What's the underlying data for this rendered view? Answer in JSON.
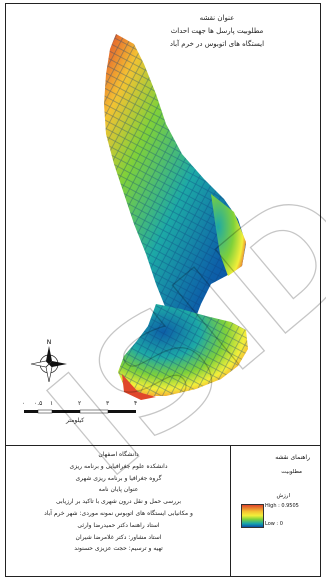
{
  "map_title": {
    "line1": "عنوان نقشه",
    "line2": "مطلوبیت پارسل ها جهت احداث",
    "line3": "ایستگاه های اتوبوس در خرم آباد"
  },
  "scale_bar": {
    "unit": "کیلومتر",
    "ticks": [
      "۰",
      "۰.۵",
      "۱",
      "۲",
      "۳",
      "۴"
    ]
  },
  "north_arrow": {
    "icon": "north-arrow-icon"
  },
  "info": {
    "university": "دانشگاه اصفهان",
    "faculty": "دانشکده علوم جغرافیایی و برنامه ریزی",
    "department": "گروه جغرافیا و برنامه ریزی شهری",
    "thesis_label": "عنوان پایان نامه",
    "thesis_line1": "بررسی حمل و نقل درون شهری با تاکید بر ارزیابی",
    "thesis_line2": "و مکانیابی ایستگاه های اتوبوس نمونه موردی: شهر خرم آباد",
    "supervisor": "استاد راهنما دکتر حمیدرضا وارثی",
    "advisor": "استاد مشاور: دکتر غلامرضا شیران",
    "author": "تهیه و ترسیم: حجت عزیزی حسنوند"
  },
  "legend": {
    "title": "راهنمای نقشه",
    "subtitle": "مطلوبیت",
    "field": "ارزش",
    "high_label": "High : 0.9505",
    "low_label": "Low : 0",
    "colors": {
      "high": "#e0472b",
      "mid": "#f3ef3a",
      "low": "#0a4fa8"
    }
  },
  "watermark": {
    "text": "ISID"
  }
}
